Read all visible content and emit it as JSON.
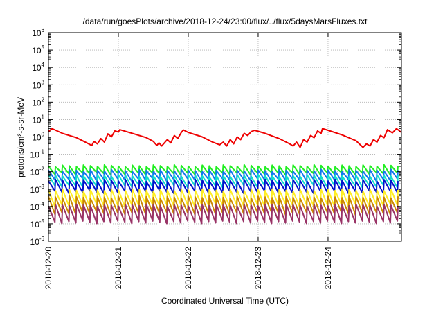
{
  "chart_data": {
    "type": "line",
    "title": "/data/run/goesPlots/archive/2018-12-24/23:00/flux/../flux/5daysMarsFluxes.txt",
    "xlabel": "Coordinated Universal Time (UTC)",
    "ylabel": "protons/cm²-s-sr-MeV",
    "x_tick_labels": [
      "2018-12-20",
      "2018-12-21",
      "2018-12-22",
      "2018-12-23",
      "2018-12-24"
    ],
    "y_scale": "log",
    "y_tick_labels": [
      {
        "base": "10",
        "exp": "-6"
      },
      {
        "base": "10",
        "exp": "-5"
      },
      {
        "base": "10",
        "exp": "-4"
      },
      {
        "base": "10",
        "exp": "-3"
      },
      {
        "base": "10",
        "exp": "-2"
      },
      {
        "base": "10",
        "exp": "-1"
      },
      {
        "base": "10",
        "exp": "0"
      },
      {
        "base": "10",
        "exp": "1"
      },
      {
        "base": "10",
        "exp": "2"
      },
      {
        "base": "10",
        "exp": "3"
      },
      {
        "base": "10",
        "exp": "4"
      },
      {
        "base": "10",
        "exp": "5"
      },
      {
        "base": "10",
        "exp": "6"
      }
    ],
    "ylim": [
      1e-06,
      1000000.0
    ],
    "xlim_days": [
      0,
      5.05
    ],
    "grid": true,
    "series": [
      {
        "color": "#ee0000",
        "sawtooth": false,
        "anchors": [
          [
            0,
            2.0
          ],
          [
            0.05,
            3.0
          ],
          [
            0.2,
            1.6
          ],
          [
            0.4,
            0.9
          ],
          [
            0.55,
            0.45
          ],
          [
            0.62,
            0.32
          ],
          [
            0.65,
            0.55
          ],
          [
            0.7,
            0.4
          ],
          [
            0.75,
            0.8
          ],
          [
            0.8,
            0.5
          ],
          [
            0.85,
            1.5
          ],
          [
            0.9,
            1.0
          ],
          [
            0.95,
            2.2
          ],
          [
            1.0,
            1.9
          ],
          [
            1.02,
            2.6
          ],
          [
            1.2,
            1.6
          ],
          [
            1.4,
            0.9
          ],
          [
            1.5,
            0.55
          ],
          [
            1.55,
            0.32
          ],
          [
            1.58,
            0.45
          ],
          [
            1.62,
            0.3
          ],
          [
            1.7,
            0.7
          ],
          [
            1.75,
            0.45
          ],
          [
            1.8,
            1.2
          ],
          [
            1.85,
            0.8
          ],
          [
            1.9,
            1.8
          ],
          [
            1.93,
            2.5
          ],
          [
            2.0,
            1.8
          ],
          [
            2.2,
            1.0
          ],
          [
            2.35,
            0.5
          ],
          [
            2.45,
            0.35
          ],
          [
            2.5,
            0.5
          ],
          [
            2.55,
            0.3
          ],
          [
            2.6,
            0.7
          ],
          [
            2.65,
            0.4
          ],
          [
            2.7,
            1.0
          ],
          [
            2.75,
            0.7
          ],
          [
            2.8,
            1.6
          ],
          [
            2.85,
            1.2
          ],
          [
            2.9,
            2.0
          ],
          [
            2.95,
            2.4
          ],
          [
            3.1,
            1.6
          ],
          [
            3.3,
            0.8
          ],
          [
            3.45,
            0.4
          ],
          [
            3.5,
            0.3
          ],
          [
            3.55,
            0.5
          ],
          [
            3.6,
            0.25
          ],
          [
            3.65,
            0.7
          ],
          [
            3.7,
            0.5
          ],
          [
            3.75,
            1.2
          ],
          [
            3.8,
            0.9
          ],
          [
            3.85,
            2.2
          ],
          [
            3.9,
            1.6
          ],
          [
            3.92,
            3.0
          ],
          [
            4.0,
            2.4
          ],
          [
            4.2,
            1.3
          ],
          [
            4.4,
            0.6
          ],
          [
            4.5,
            0.25
          ],
          [
            4.55,
            0.4
          ],
          [
            4.6,
            0.3
          ],
          [
            4.65,
            0.7
          ],
          [
            4.7,
            0.5
          ],
          [
            4.75,
            1.2
          ],
          [
            4.8,
            0.9
          ],
          [
            4.85,
            2.6
          ],
          [
            4.92,
            1.7
          ],
          [
            4.98,
            3.0
          ],
          [
            5.05,
            1.8
          ]
        ]
      },
      {
        "color": "#22ee22",
        "sawtooth": true,
        "hi": 0.022,
        "lo": 0.008,
        "period": 0.1
      },
      {
        "color": "#1177ee",
        "sawtooth": true,
        "hi": 0.012,
        "lo": 0.0035,
        "period": 0.1
      },
      {
        "color": "#11ddcc",
        "sawtooth": true,
        "hi": 0.006,
        "lo": 0.0015,
        "period": 0.1
      },
      {
        "color": "#0011cc",
        "sawtooth": true,
        "hi": 0.0032,
        "lo": 0.0007,
        "period": 0.1
      },
      {
        "color": "#ffee22",
        "sawtooth": true,
        "hi": 0.0009,
        "lo": 0.00012,
        "period": 0.1
      },
      {
        "color": "#cc8800",
        "sawtooth": true,
        "hi": 0.00035,
        "lo": 4e-05,
        "period": 0.1
      },
      {
        "color": "#993366",
        "sawtooth": true,
        "hi": 0.00012,
        "lo": 1.3e-05,
        "period": 0.1
      }
    ]
  }
}
